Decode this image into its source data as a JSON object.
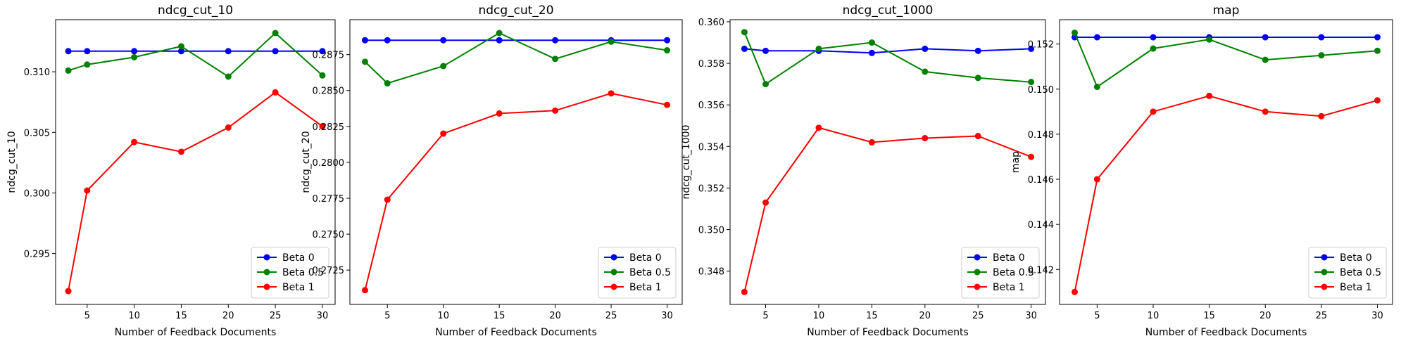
{
  "chart_data": [
    {
      "type": "line",
      "title": "ndcg_cut_10",
      "xlabel": "Number of Feedback Documents",
      "ylabel": "ndcg_cut_10",
      "x": [
        3,
        5,
        10,
        15,
        20,
        25,
        30
      ],
      "xticks": [
        5,
        10,
        15,
        20,
        25,
        30
      ],
      "xlim": [
        1.65,
        31.35
      ],
      "yticks": [
        0.295,
        0.3,
        0.305,
        0.31
      ],
      "ytick_labels": [
        "0.295",
        "0.300",
        "0.305",
        "0.310"
      ],
      "ylim": [
        0.2908,
        0.3143
      ],
      "legend_position": "lower-right",
      "grid": false,
      "series": [
        {
          "name": "Beta 0",
          "color": "#0000ff",
          "values": [
            0.3117,
            0.3117,
            0.3117,
            0.3117,
            0.3117,
            0.3117,
            0.3117
          ]
        },
        {
          "name": "Beta 0.5",
          "color": "#008000",
          "values": [
            0.3101,
            0.3106,
            0.3112,
            0.3121,
            0.3096,
            0.3132,
            0.3097
          ]
        },
        {
          "name": "Beta 1",
          "color": "#ff0000",
          "values": [
            0.2919,
            0.3002,
            0.3042,
            0.3034,
            0.3054,
            0.3083,
            0.3055
          ]
        }
      ]
    },
    {
      "type": "line",
      "title": "ndcg_cut_20",
      "xlabel": "Number of Feedback Documents",
      "ylabel": "ndcg_cut_20",
      "x": [
        3,
        5,
        10,
        15,
        20,
        25,
        30
      ],
      "xticks": [
        5,
        10,
        15,
        20,
        25,
        30
      ],
      "xlim": [
        1.65,
        31.35
      ],
      "yticks": [
        0.2725,
        0.275,
        0.2775,
        0.28,
        0.2825,
        0.285,
        0.2875
      ],
      "ytick_labels": [
        "0.2725",
        "0.2750",
        "0.2775",
        "0.2800",
        "0.2825",
        "0.2850",
        "0.2875"
      ],
      "ylim": [
        0.27011,
        0.28993
      ],
      "legend_position": "lower-right",
      "grid": false,
      "series": [
        {
          "name": "Beta 0",
          "color": "#0000ff",
          "values": [
            0.2885,
            0.2885,
            0.2885,
            0.2885,
            0.2885,
            0.2885,
            0.2885
          ]
        },
        {
          "name": "Beta 0.5",
          "color": "#008000",
          "values": [
            0.287,
            0.2855,
            0.2867,
            0.289,
            0.2872,
            0.2884,
            0.2878
          ]
        },
        {
          "name": "Beta 1",
          "color": "#ff0000",
          "values": [
            0.2711,
            0.2774,
            0.282,
            0.2834,
            0.2836,
            0.2848,
            0.284
          ]
        }
      ]
    },
    {
      "type": "line",
      "title": "ndcg_cut_1000",
      "xlabel": "Number of Feedback Documents",
      "ylabel": "ndcg_cut_1000",
      "x": [
        3,
        5,
        10,
        15,
        20,
        25,
        30
      ],
      "xticks": [
        5,
        10,
        15,
        20,
        25,
        30
      ],
      "xlim": [
        1.65,
        31.35
      ],
      "yticks": [
        0.348,
        0.35,
        0.352,
        0.354,
        0.356,
        0.358,
        0.36
      ],
      "ytick_labels": [
        "0.348",
        "0.350",
        "0.352",
        "0.354",
        "0.356",
        "0.358",
        "0.360"
      ],
      "ylim": [
        0.3464,
        0.3601
      ],
      "legend_position": "lower-right",
      "grid": false,
      "series": [
        {
          "name": "Beta 0",
          "color": "#0000ff",
          "values": [
            0.3587,
            0.3586,
            0.3586,
            0.3585,
            0.3587,
            0.3586,
            0.3587
          ]
        },
        {
          "name": "Beta 0.5",
          "color": "#008000",
          "values": [
            0.3595,
            0.357,
            0.3587,
            0.359,
            0.3576,
            0.3573,
            0.3571
          ]
        },
        {
          "name": "Beta 1",
          "color": "#ff0000",
          "values": [
            0.347,
            0.3513,
            0.3549,
            0.3542,
            0.3544,
            0.3545,
            0.3535
          ]
        }
      ]
    },
    {
      "type": "line",
      "title": "map",
      "xlabel": "Number of Feedback Documents",
      "ylabel": "map",
      "x": [
        3,
        5,
        10,
        15,
        20,
        25,
        30
      ],
      "xticks": [
        5,
        10,
        15,
        20,
        25,
        30
      ],
      "xlim": [
        1.65,
        31.35
      ],
      "yticks": [
        0.142,
        0.144,
        0.146,
        0.148,
        0.15,
        0.152
      ],
      "ytick_labels": [
        "0.142",
        "0.144",
        "0.146",
        "0.148",
        "0.150",
        "0.152"
      ],
      "ylim": [
        0.14045,
        0.15308
      ],
      "legend_position": "lower-right",
      "grid": false,
      "series": [
        {
          "name": "Beta 0",
          "color": "#0000ff",
          "values": [
            0.1523,
            0.1523,
            0.1523,
            0.1523,
            0.1523,
            0.1523,
            0.1523
          ]
        },
        {
          "name": "Beta 0.5",
          "color": "#008000",
          "values": [
            0.1525,
            0.1501,
            0.1518,
            0.1522,
            0.1513,
            0.1515,
            0.1517
          ]
        },
        {
          "name": "Beta 1",
          "color": "#ff0000",
          "values": [
            0.141,
            0.146,
            0.149,
            0.1497,
            0.149,
            0.1488,
            0.1495
          ]
        }
      ]
    }
  ]
}
